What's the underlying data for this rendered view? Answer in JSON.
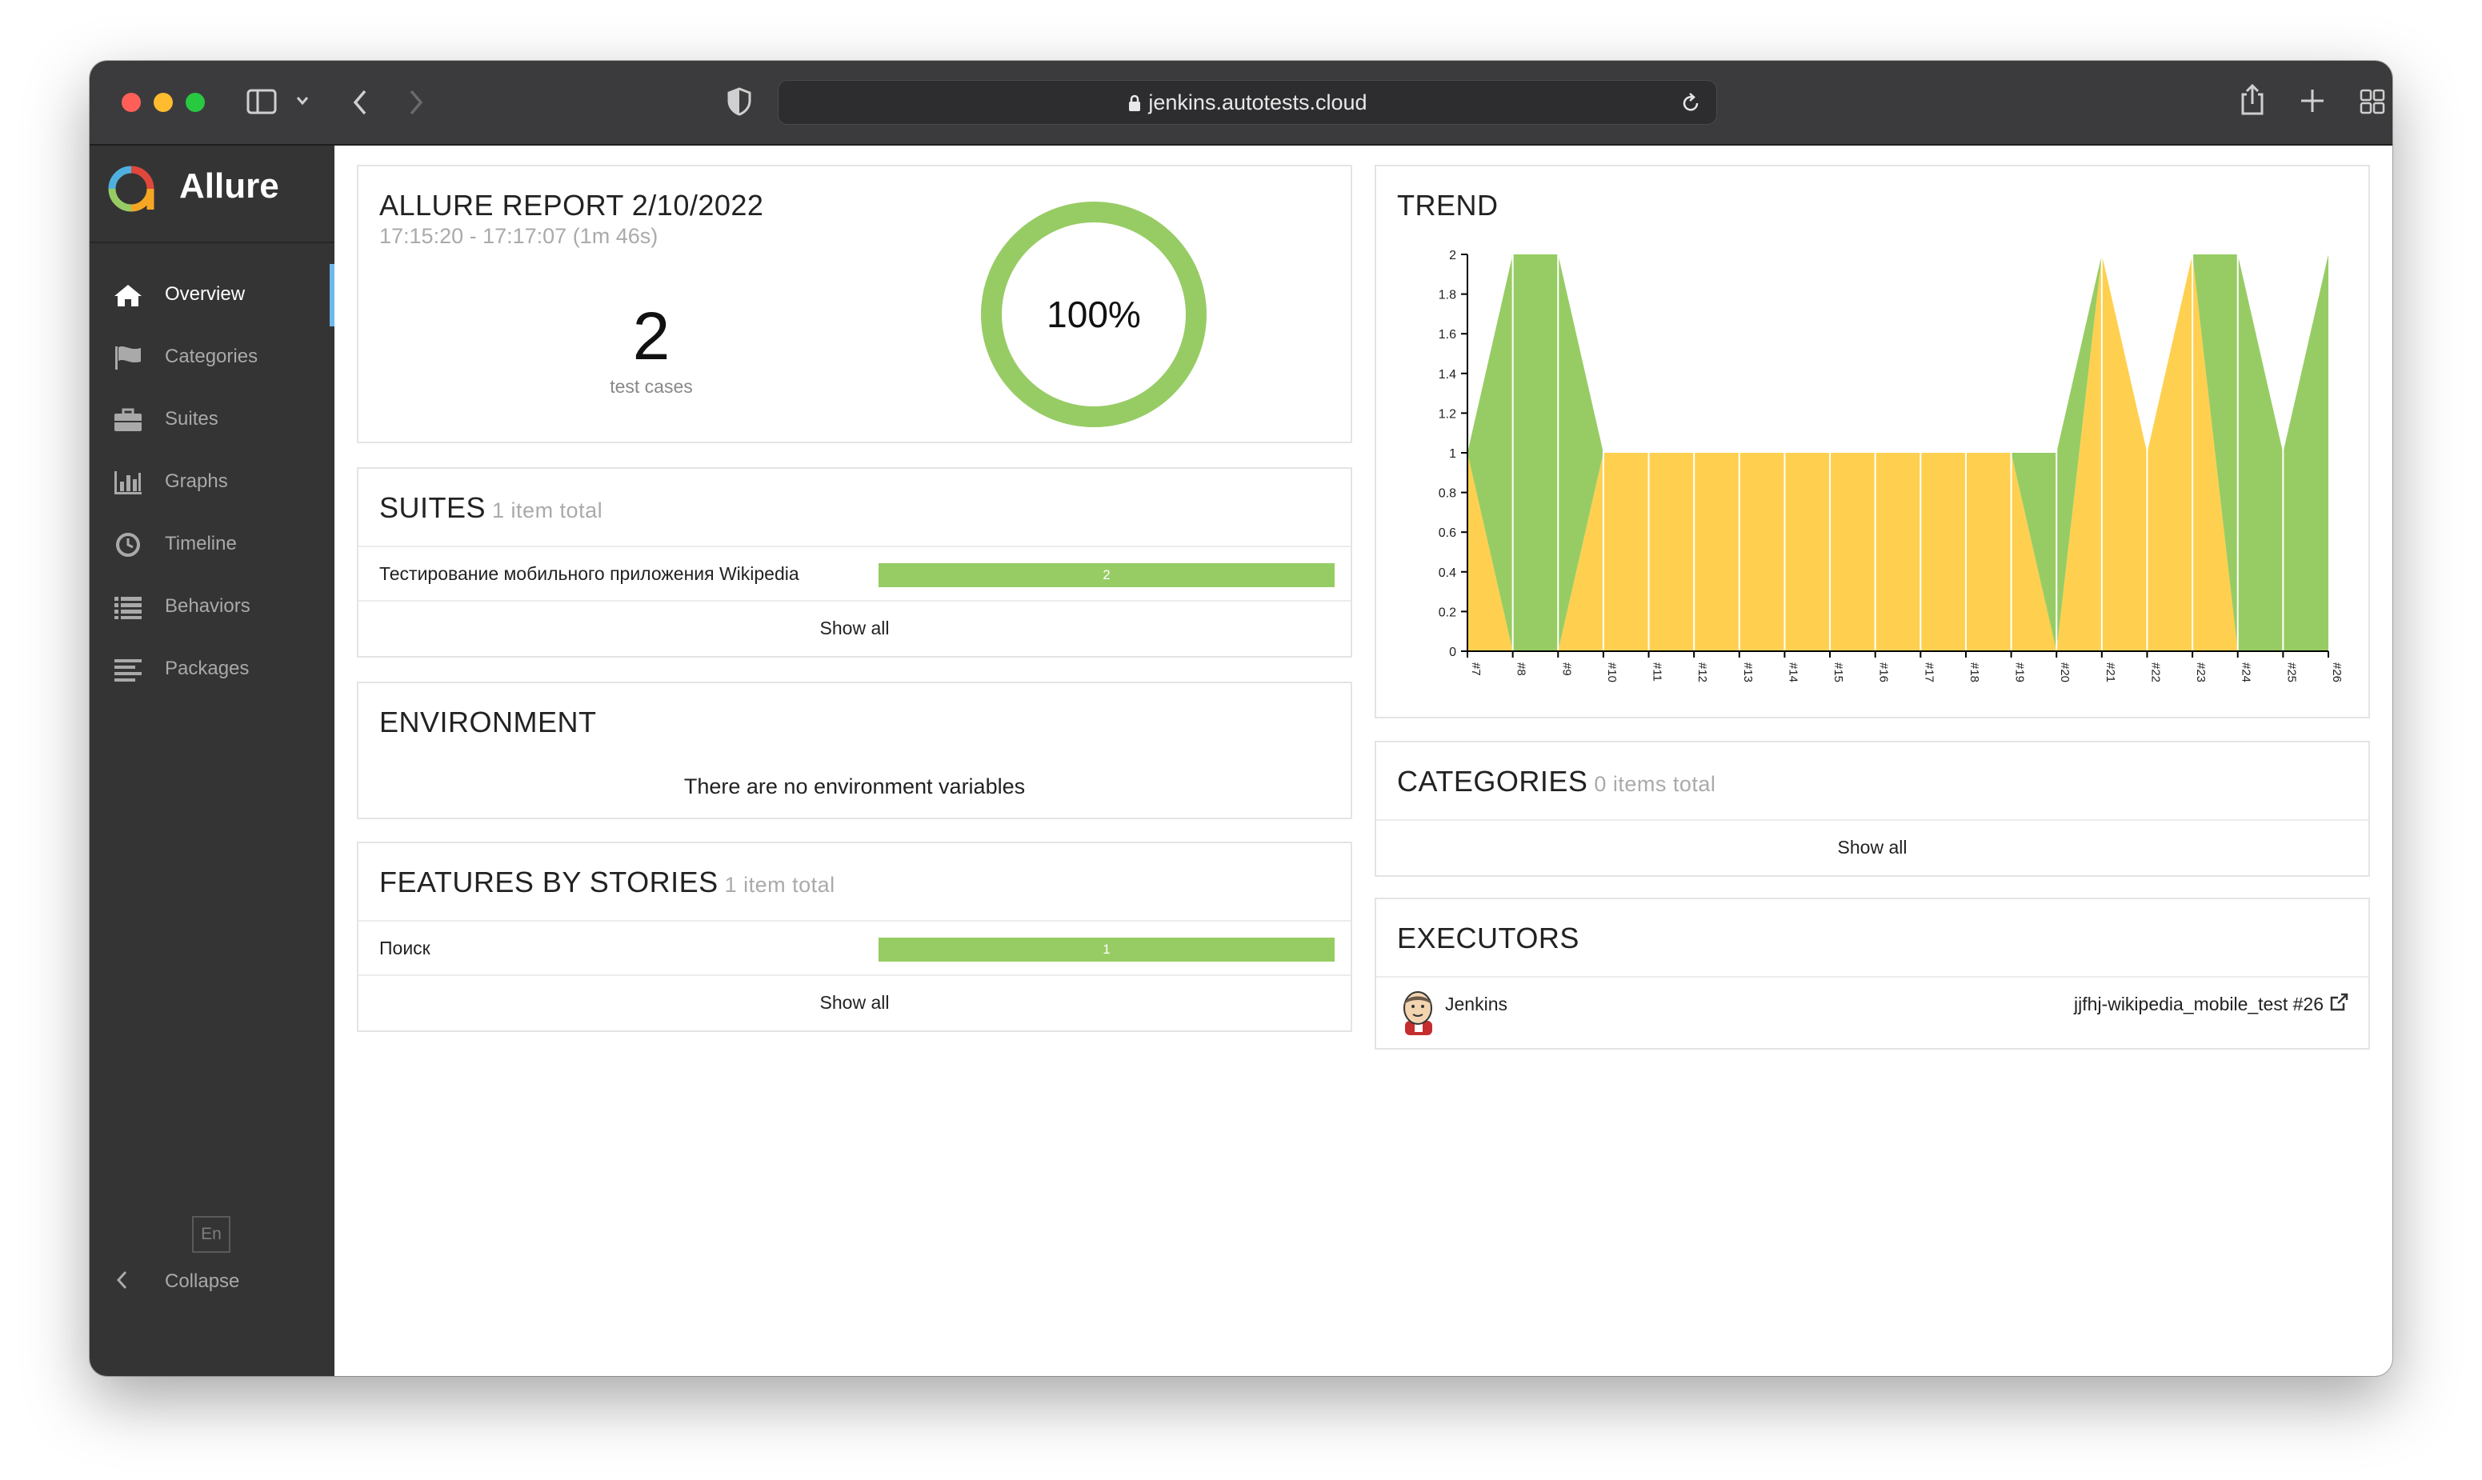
{
  "browser": {
    "url": "jenkins.autotests.cloud"
  },
  "sidebar": {
    "brand": "Allure",
    "items": [
      {
        "label": "Overview",
        "icon": "home-icon",
        "active": true
      },
      {
        "label": "Categories",
        "icon": "flag-icon",
        "active": false
      },
      {
        "label": "Suites",
        "icon": "briefcase-icon",
        "active": false
      },
      {
        "label": "Graphs",
        "icon": "bar-chart-icon",
        "active": false
      },
      {
        "label": "Timeline",
        "icon": "clock-icon",
        "active": false
      },
      {
        "label": "Behaviors",
        "icon": "list-icon",
        "active": false
      },
      {
        "label": "Packages",
        "icon": "align-left-icon",
        "active": false
      }
    ],
    "language": "En",
    "collapse_label": "Collapse"
  },
  "report": {
    "title": "ALLURE REPORT 2/10/2022",
    "time_range": "17:15:20 - 17:17:07 (1m 46s)",
    "test_count": "2",
    "test_count_label": "test cases",
    "success_rate": "100%",
    "success_fraction": 1.0,
    "colors": {
      "passed": "#97cc64",
      "broken": "#ffd050"
    }
  },
  "suites": {
    "title": "SUITES",
    "count": "1 item total",
    "rows": [
      {
        "name": "Тестирование мобильного приложения Wikipedia",
        "value": "2"
      }
    ],
    "show_all": "Show all"
  },
  "environment": {
    "title": "ENVIRONMENT",
    "empty_text": "There are no environment variables"
  },
  "features": {
    "title": "FEATURES BY STORIES",
    "count": "1 item total",
    "rows": [
      {
        "name": "Поиск",
        "value": "1"
      }
    ],
    "show_all": "Show all"
  },
  "trend": {
    "title": "TREND"
  },
  "categories": {
    "title": "CATEGORIES",
    "count": "0 items total",
    "show_all": "Show all"
  },
  "executors": {
    "title": "EXECUTORS",
    "name": "Jenkins",
    "build": "jjfhj-wikipedia_mobile_test #26"
  },
  "chart_data": {
    "type": "area",
    "title": "TREND",
    "x": [
      "#7",
      "#8",
      "#9",
      "#10",
      "#11",
      "#12",
      "#13",
      "#14",
      "#15",
      "#16",
      "#17",
      "#18",
      "#19",
      "#20",
      "#21",
      "#22",
      "#23",
      "#24",
      "#25",
      "#26"
    ],
    "ylim": [
      0,
      2
    ],
    "yticks": [
      "0",
      "0.2",
      "0.4",
      "0.6",
      "0.8",
      "1",
      "1.2",
      "1.4",
      "1.6",
      "1.8",
      "2"
    ],
    "series": [
      {
        "color": "#ffd050",
        "values": [
          1,
          0,
          0,
          1,
          1,
          1,
          1,
          1,
          1,
          1,
          1,
          1,
          1,
          0,
          2,
          1,
          2,
          0,
          0,
          0
        ]
      },
      {
        "color": "#97cc64",
        "values": [
          0,
          2,
          2,
          0,
          0,
          0,
          0,
          0,
          0,
          0,
          0,
          0,
          0,
          1,
          0,
          0,
          0,
          2,
          1,
          2
        ]
      }
    ],
    "grid": false,
    "legend": "none"
  }
}
